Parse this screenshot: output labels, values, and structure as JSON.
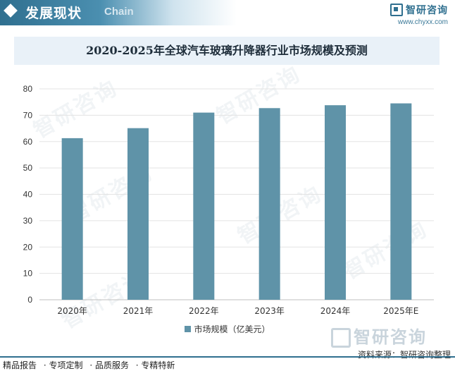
{
  "header": {
    "title": "发展现状",
    "subtitle": "Chain",
    "brand_name": "智研咨询",
    "brand_url": "www.chyxx.com"
  },
  "chart_data": {
    "type": "bar",
    "title": "2020-2025年全球汽车玻璃升降器行业市场规模及预测",
    "categories": [
      "2020年",
      "2021年",
      "2022年",
      "2023年",
      "2024年",
      "2025年E"
    ],
    "series": [
      {
        "name": "市场规模（亿美元）",
        "values": [
          61.3,
          65.1,
          71.0,
          72.7,
          73.8,
          74.5
        ]
      }
    ],
    "xlabel": "",
    "ylabel": "",
    "ylim": [
      0,
      80
    ],
    "yticks": [
      0,
      10,
      20,
      30,
      40,
      50,
      60,
      70,
      80
    ],
    "grid": true,
    "legend_position": "bottom",
    "bar_color": "#5f93a8"
  },
  "watermark": {
    "text": "智研咨询"
  },
  "source": "资料来源：智研咨询整理",
  "footer": {
    "tags": [
      "精品报告",
      "· 专项定制",
      "· 品质服务",
      "· 专精特新"
    ]
  }
}
